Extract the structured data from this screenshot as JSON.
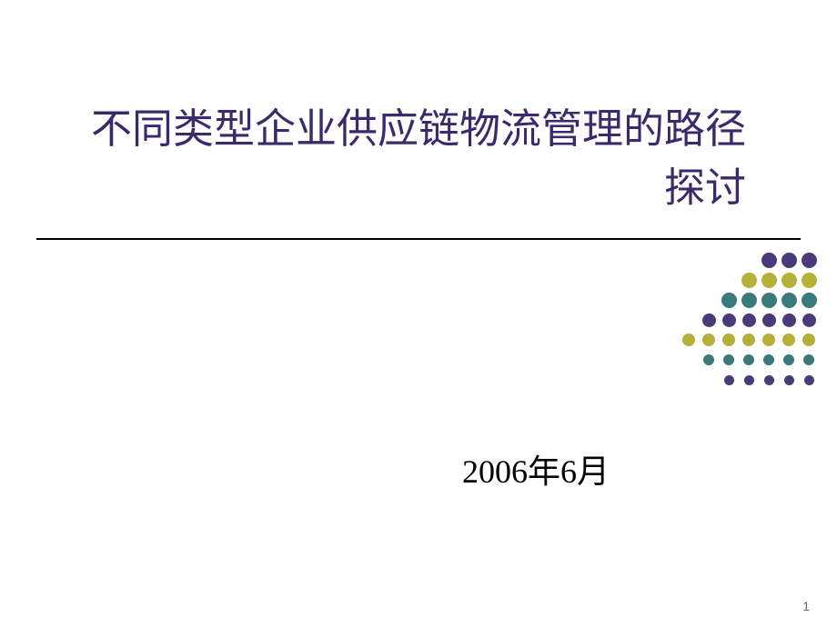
{
  "slide": {
    "title": "不同类型企业供应链物流管理的路径探讨",
    "date": "2006年6月",
    "page_number": "1",
    "title_color": "#3b2a6b",
    "date_color": "#000000",
    "background_color": "#ffffff",
    "divider_color": "#000000"
  },
  "decoration": {
    "colors": {
      "purple_dark": "#4b3a7a",
      "olive": "#b5b038",
      "teal": "#3a7a7a"
    },
    "grid": [
      [
        null,
        null,
        null,
        null,
        {
          "c": "purple_dark",
          "s": 17
        },
        {
          "c": "purple_dark",
          "s": 17
        },
        {
          "c": "purple_dark",
          "s": 17
        }
      ],
      [
        null,
        null,
        null,
        {
          "c": "olive",
          "s": 17
        },
        {
          "c": "olive",
          "s": 17
        },
        {
          "c": "olive",
          "s": 17
        },
        {
          "c": "olive",
          "s": 17
        }
      ],
      [
        null,
        null,
        {
          "c": "teal",
          "s": 17
        },
        {
          "c": "teal",
          "s": 17
        },
        {
          "c": "teal",
          "s": 17
        },
        {
          "c": "teal",
          "s": 17
        },
        {
          "c": "teal",
          "s": 17
        }
      ],
      [
        null,
        {
          "c": "purple_dark",
          "s": 15
        },
        {
          "c": "purple_dark",
          "s": 15
        },
        {
          "c": "purple_dark",
          "s": 15
        },
        {
          "c": "purple_dark",
          "s": 15
        },
        {
          "c": "purple_dark",
          "s": 15
        },
        {
          "c": "purple_dark",
          "s": 15
        }
      ],
      [
        {
          "c": "olive",
          "s": 14
        },
        {
          "c": "olive",
          "s": 14
        },
        {
          "c": "olive",
          "s": 14
        },
        {
          "c": "olive",
          "s": 14
        },
        {
          "c": "olive",
          "s": 14
        },
        {
          "c": "olive",
          "s": 14
        },
        {
          "c": "olive",
          "s": 14
        }
      ],
      [
        null,
        {
          "c": "teal",
          "s": 12
        },
        {
          "c": "teal",
          "s": 12
        },
        {
          "c": "teal",
          "s": 12
        },
        {
          "c": "teal",
          "s": 12
        },
        {
          "c": "teal",
          "s": 12
        },
        {
          "c": "teal",
          "s": 12
        }
      ],
      [
        null,
        null,
        {
          "c": "purple_dark",
          "s": 11
        },
        {
          "c": "purple_dark",
          "s": 11
        },
        {
          "c": "purple_dark",
          "s": 11
        },
        {
          "c": "purple_dark",
          "s": 11
        },
        {
          "c": "purple_dark",
          "s": 11
        }
      ]
    ]
  }
}
